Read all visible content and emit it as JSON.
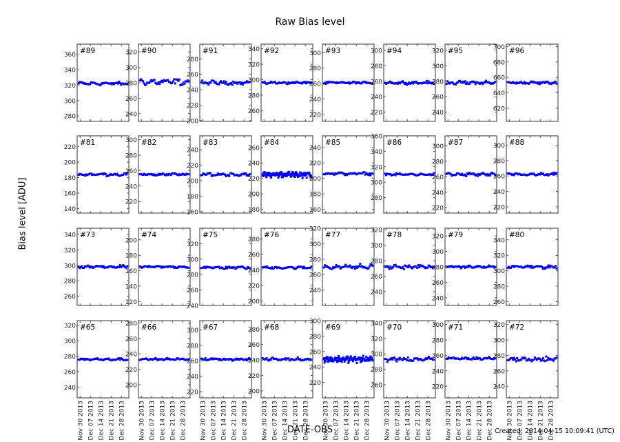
{
  "figure": {
    "title": "Raw Bias level",
    "ylabel": "Bias level [ADU]",
    "xlabel": "DATE-OBS",
    "created": "Created: 2014-04-15 10:09:41 (UTC)"
  },
  "colors": {
    "marker": "#0000ff",
    "axes": "#555555",
    "text": "#000000",
    "background": "#ffffff"
  },
  "chart_data": {
    "type": "scatter",
    "title": "Raw Bias level",
    "xlabel": "DATE-OBS",
    "ylabel": "Bias level [ADU]",
    "grid": false,
    "legend": null,
    "layout": {
      "rows": 4,
      "cols": 8
    },
    "x_tick_labels": [
      "Nov 30 2013",
      "Dec 07 2013",
      "Dec 14 2013",
      "Dec 21 2013",
      "Dec 28 2013"
    ],
    "x_range_days": [
      -2,
      33
    ],
    "panels": [
      {
        "id": "#89",
        "row": 0,
        "col": 0,
        "ylim": [
          273,
          373
        ],
        "yticks": [
          280,
          300,
          320,
          340,
          360
        ],
        "level": 322,
        "scatter": 1.5,
        "dense": false
      },
      {
        "id": "#90",
        "row": 0,
        "col": 1,
        "ylim": [
          230,
          330
        ],
        "yticks": [
          240,
          260,
          280,
          300,
          320
        ],
        "level": 281,
        "scatter": 3,
        "dense": false
      },
      {
        "id": "#91",
        "row": 0,
        "col": 2,
        "ylim": [
          199,
          299
        ],
        "yticks": [
          200,
          220,
          240,
          260,
          280
        ],
        "level": 249,
        "scatter": 1.8,
        "dense": false
      },
      {
        "id": "#92",
        "row": 0,
        "col": 3,
        "ylim": [
          246,
          346
        ],
        "yticks": [
          260,
          280,
          300,
          320,
          340
        ],
        "level": 296,
        "scatter": 1.2,
        "dense": false
      },
      {
        "id": "#93",
        "row": 0,
        "col": 4,
        "ylim": [
          211,
          311
        ],
        "yticks": [
          220,
          240,
          260,
          280,
          300
        ],
        "level": 261,
        "scatter": 1.0,
        "dense": false
      },
      {
        "id": "#94",
        "row": 0,
        "col": 5,
        "ylim": [
          208,
          308
        ],
        "yticks": [
          220,
          240,
          260,
          280,
          300
        ],
        "level": 258,
        "scatter": 1.3,
        "dense": false
      },
      {
        "id": "#95",
        "row": 0,
        "col": 6,
        "ylim": [
          228,
          328
        ],
        "yticks": [
          240,
          260,
          280,
          300,
          320
        ],
        "level": 278,
        "scatter": 1.8,
        "dense": false
      },
      {
        "id": "#96",
        "row": 0,
        "col": 7,
        "ylim": [
          603,
          703
        ],
        "yticks": [
          620,
          640,
          660,
          680,
          700
        ],
        "level": 653,
        "scatter": 1.2,
        "dense": false
      },
      {
        "id": "#81",
        "row": 1,
        "col": 0,
        "ylim": [
          134,
          234
        ],
        "yticks": [
          140,
          160,
          180,
          200,
          220
        ],
        "level": 184,
        "scatter": 1.3,
        "dense": false
      },
      {
        "id": "#82",
        "row": 1,
        "col": 1,
        "ylim": [
          205,
          305
        ],
        "yticks": [
          220,
          240,
          260,
          280,
          300
        ],
        "level": 255,
        "scatter": 1.2,
        "dense": false
      },
      {
        "id": "#83",
        "row": 1,
        "col": 2,
        "ylim": [
          158,
          258
        ],
        "yticks": [
          160,
          180,
          200,
          220,
          240
        ],
        "level": 208,
        "scatter": 1.6,
        "dense": false
      },
      {
        "id": "#84",
        "row": 1,
        "col": 3,
        "ylim": [
          175,
          275
        ],
        "yticks": [
          180,
          200,
          220,
          240,
          260
        ],
        "level": 225,
        "scatter": 2.5,
        "dense": true
      },
      {
        "id": "#85",
        "row": 1,
        "col": 4,
        "ylim": [
          155,
          255
        ],
        "yticks": [
          160,
          180,
          200,
          220,
          240
        ],
        "level": 206,
        "scatter": 1.2,
        "dense": false
      },
      {
        "id": "#86",
        "row": 1,
        "col": 5,
        "ylim": [
          260,
          360
        ],
        "yticks": [
          280,
          300,
          320,
          340,
          360
        ],
        "level": 310,
        "scatter": 1.0,
        "dense": false
      },
      {
        "id": "#87",
        "row": 1,
        "col": 6,
        "ylim": [
          213,
          313
        ],
        "yticks": [
          220,
          240,
          260,
          280,
          300
        ],
        "level": 263,
        "scatter": 1.6,
        "dense": false
      },
      {
        "id": "#88",
        "row": 1,
        "col": 7,
        "ylim": [
          212,
          312
        ],
        "yticks": [
          220,
          240,
          260,
          280,
          300
        ],
        "level": 262,
        "scatter": 1.3,
        "dense": false
      },
      {
        "id": "#73",
        "row": 2,
        "col": 0,
        "ylim": [
          248,
          348
        ],
        "yticks": [
          260,
          280,
          300,
          320,
          340
        ],
        "level": 298,
        "scatter": 1.4,
        "dense": false
      },
      {
        "id": "#74",
        "row": 2,
        "col": 1,
        "ylim": [
          115,
          215
        ],
        "yticks": [
          120,
          140,
          160,
          180,
          200
        ],
        "level": 165,
        "scatter": 1.0,
        "dense": false
      },
      {
        "id": "#75",
        "row": 2,
        "col": 2,
        "ylim": [
          240,
          340
        ],
        "yticks": [
          240,
          260,
          280,
          300,
          320
        ],
        "level": 289,
        "scatter": 1.2,
        "dense": false
      },
      {
        "id": "#76",
        "row": 2,
        "col": 3,
        "ylim": [
          194,
          294
        ],
        "yticks": [
          200,
          220,
          240,
          260,
          280
        ],
        "level": 243,
        "scatter": 1.1,
        "dense": false
      },
      {
        "id": "#77",
        "row": 2,
        "col": 4,
        "ylim": [
          220,
          320
        ],
        "yticks": [
          240,
          260,
          280,
          300,
          320
        ],
        "level": 270,
        "scatter": 2.2,
        "dense": false
      },
      {
        "id": "#78",
        "row": 2,
        "col": 5,
        "ylim": [
          222,
          322
        ],
        "yticks": [
          240,
          260,
          280,
          300,
          320
        ],
        "level": 272,
        "scatter": 1.8,
        "dense": false
      },
      {
        "id": "#79",
        "row": 2,
        "col": 6,
        "ylim": [
          230,
          330
        ],
        "yticks": [
          240,
          260,
          280,
          300,
          320
        ],
        "level": 280,
        "scatter": 1.2,
        "dense": false
      },
      {
        "id": "#80",
        "row": 2,
        "col": 7,
        "ylim": [
          255,
          355
        ],
        "yticks": [
          260,
          280,
          300,
          320,
          340
        ],
        "level": 305,
        "scatter": 1.6,
        "dense": false
      },
      {
        "id": "#65",
        "row": 3,
        "col": 0,
        "ylim": [
          226,
          326
        ],
        "yticks": [
          240,
          260,
          280,
          300,
          320
        ],
        "level": 276,
        "scatter": 1.0,
        "dense": false
      },
      {
        "id": "#66",
        "row": 3,
        "col": 1,
        "ylim": [
          183,
          283
        ],
        "yticks": [
          200,
          220,
          240,
          260,
          280
        ],
        "level": 233,
        "scatter": 0.9,
        "dense": false
      },
      {
        "id": "#67",
        "row": 3,
        "col": 2,
        "ylim": [
          212,
          312
        ],
        "yticks": [
          220,
          240,
          260,
          280,
          300
        ],
        "level": 262,
        "scatter": 1.1,
        "dense": false
      },
      {
        "id": "#68",
        "row": 3,
        "col": 3,
        "ylim": [
          191,
          291
        ],
        "yticks": [
          200,
          220,
          240,
          260,
          280
        ],
        "level": 241,
        "scatter": 1.3,
        "dense": false
      },
      {
        "id": "#69",
        "row": 3,
        "col": 4,
        "ylim": [
          200,
          300
        ],
        "yticks": [
          220,
          240,
          260,
          280,
          300
        ],
        "level": 250,
        "scatter": 2.8,
        "dense": true
      },
      {
        "id": "#70",
        "row": 3,
        "col": 5,
        "ylim": [
          243,
          343
        ],
        "yticks": [
          260,
          280,
          300,
          320,
          340
        ],
        "level": 293,
        "scatter": 2.0,
        "dense": false
      },
      {
        "id": "#71",
        "row": 3,
        "col": 6,
        "ylim": [
          205,
          305
        ],
        "yticks": [
          220,
          240,
          260,
          280,
          300
        ],
        "level": 256,
        "scatter": 1.4,
        "dense": false
      },
      {
        "id": "#72",
        "row": 3,
        "col": 7,
        "ylim": [
          225,
          325
        ],
        "yticks": [
          240,
          260,
          280,
          300,
          320
        ],
        "level": 275,
        "scatter": 2.2,
        "dense": false
      }
    ]
  }
}
